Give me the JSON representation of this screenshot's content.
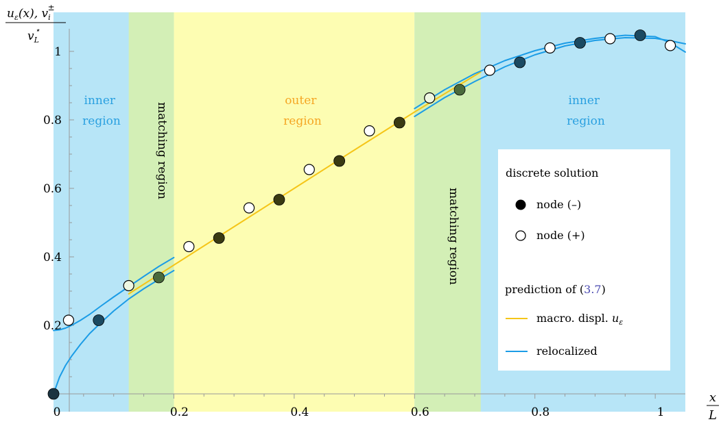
{
  "chart_data": {
    "type": "line",
    "ylabel": {
      "main": "u",
      "sub1": "ε",
      "mid": "(x), v",
      "sub2": "i",
      "sup2": "±",
      "den": "v",
      "den_sub": "L",
      "den_sup": "⋆"
    },
    "xlabel": {
      "num": "x",
      "den": "L"
    },
    "xlim": [
      0,
      1.05
    ],
    "ylim": [
      -0.01,
      1.1
    ],
    "xticks": [
      {
        "value": 0,
        "label": "0"
      },
      {
        "value": 0.2,
        "label": "0.2"
      },
      {
        "value": 0.4,
        "label": "0.4"
      },
      {
        "value": 0.6,
        "label": "0.6"
      },
      {
        "value": 0.8,
        "label": "0.8"
      },
      {
        "value": 1,
        "label": "1"
      }
    ],
    "yticks": [
      {
        "value": 0.2,
        "label": "0.2"
      },
      {
        "value": 0.4,
        "label": "0.4"
      },
      {
        "value": 0.6,
        "label": "0.6"
      },
      {
        "value": 0.8,
        "label": "0.8"
      },
      {
        "value": 1,
        "label": "1"
      }
    ],
    "regions": [
      {
        "kind": "inner",
        "x0": 0,
        "x1": 0.2,
        "color": "#b7e5f7"
      },
      {
        "kind": "outer",
        "x0": 0.2,
        "x1": 0.6,
        "color": "#fdfdb2"
      },
      {
        "kind": "inner",
        "x0": 0.6,
        "x1": 1.05,
        "color": "#b7e5f7"
      },
      {
        "kind": "matching",
        "x0": 0.125,
        "x1": 0.2,
        "color": "#d3efb6"
      },
      {
        "kind": "matching",
        "x0": 0.6,
        "x1": 0.71,
        "color": "#d3efb6"
      }
    ],
    "region_labels": {
      "inner_left": [
        "inner",
        "region"
      ],
      "outer": [
        "outer",
        "region"
      ],
      "inner_right": [
        "inner",
        "region"
      ],
      "matching_left": "matching region",
      "matching_right": "matching region"
    },
    "series": [
      {
        "name": "node (–)",
        "kind": "marker-filled",
        "points": [
          {
            "x": 0.0,
            "y": 0.0,
            "fill": "#1b3441"
          },
          {
            "x": 0.075,
            "y": 0.215,
            "fill": "#1b4a62"
          },
          {
            "x": 0.175,
            "y": 0.34,
            "fill": "#4a6a3c"
          },
          {
            "x": 0.275,
            "y": 0.455,
            "fill": "#3a3a12"
          },
          {
            "x": 0.375,
            "y": 0.567,
            "fill": "#3a3a12"
          },
          {
            "x": 0.475,
            "y": 0.68,
            "fill": "#3a3a12"
          },
          {
            "x": 0.575,
            "y": 0.792,
            "fill": "#3a3a12"
          },
          {
            "x": 0.675,
            "y": 0.888,
            "fill": "#4a6a3c"
          },
          {
            "x": 0.775,
            "y": 0.968,
            "fill": "#1b4a62"
          },
          {
            "x": 0.875,
            "y": 1.025,
            "fill": "#1b4a62"
          },
          {
            "x": 0.975,
            "y": 1.047,
            "fill": "#1b4a62"
          }
        ]
      },
      {
        "name": "node (+)",
        "kind": "marker-open",
        "points": [
          {
            "x": 0.025,
            "y": 0.215,
            "fill": "#ffffff"
          },
          {
            "x": 0.125,
            "y": 0.316,
            "fill": "#eef7e2"
          },
          {
            "x": 0.225,
            "y": 0.43,
            "fill": "#ffffff"
          },
          {
            "x": 0.325,
            "y": 0.543,
            "fill": "#ffffff"
          },
          {
            "x": 0.425,
            "y": 0.655,
            "fill": "#ffffff"
          },
          {
            "x": 0.525,
            "y": 0.768,
            "fill": "#ffffff"
          },
          {
            "x": 0.625,
            "y": 0.864,
            "fill": "#eef7e2"
          },
          {
            "x": 0.725,
            "y": 0.945,
            "fill": "#ffffff"
          },
          {
            "x": 0.825,
            "y": 1.01,
            "fill": "#ffffff"
          },
          {
            "x": 0.925,
            "y": 1.037,
            "fill": "#ffffff"
          },
          {
            "x": 1.025,
            "y": 1.017,
            "fill": "#ffffff"
          }
        ]
      },
      {
        "name": "macro. displ. u_ε",
        "kind": "line",
        "color": "#f5c518",
        "points": [
          [
            0.125,
            0.292
          ],
          [
            0.2,
            0.376
          ],
          [
            0.3,
            0.488
          ],
          [
            0.4,
            0.6
          ],
          [
            0.5,
            0.712
          ],
          [
            0.6,
            0.823
          ],
          [
            0.71,
            0.94
          ]
        ]
      },
      {
        "name": "relocalized",
        "kind": "line",
        "color": "#1b9ce6",
        "points": [
          [
            0.0,
            0.0
          ],
          [
            0.01,
            0.049
          ],
          [
            0.02,
            0.083
          ],
          [
            0.03,
            0.11
          ],
          [
            0.045,
            0.145
          ],
          [
            0.06,
            0.176
          ],
          [
            0.08,
            0.21
          ],
          [
            0.1,
            0.242
          ],
          [
            0.125,
            0.277
          ],
          [
            0.15,
            0.307
          ],
          [
            0.175,
            0.334
          ],
          [
            0.2,
            0.36
          ]
        ]
      },
      {
        "name": "relocalized",
        "kind": "line",
        "color": "#1b9ce6",
        "points": [
          [
            0.0,
            0.185
          ],
          [
            0.01,
            0.187
          ],
          [
            0.02,
            0.192
          ],
          [
            0.03,
            0.2
          ],
          [
            0.045,
            0.215
          ],
          [
            0.06,
            0.232
          ],
          [
            0.08,
            0.258
          ],
          [
            0.1,
            0.283
          ],
          [
            0.125,
            0.313
          ],
          [
            0.15,
            0.343
          ],
          [
            0.175,
            0.372
          ],
          [
            0.2,
            0.398
          ]
        ]
      },
      {
        "name": "relocalized",
        "kind": "line",
        "color": "#1b9ce6",
        "points": [
          [
            0.6,
            0.81
          ],
          [
            0.65,
            0.865
          ],
          [
            0.7,
            0.912
          ],
          [
            0.75,
            0.955
          ],
          [
            0.8,
            0.99
          ],
          [
            0.85,
            1.016
          ],
          [
            0.9,
            1.032
          ],
          [
            0.95,
            1.04
          ],
          [
            1.0,
            1.038
          ],
          [
            1.025,
            1.031
          ],
          [
            1.05,
            1.022
          ]
        ]
      },
      {
        "name": "relocalized",
        "kind": "line",
        "color": "#1b9ce6",
        "points": [
          [
            0.6,
            0.833
          ],
          [
            0.65,
            0.888
          ],
          [
            0.7,
            0.935
          ],
          [
            0.75,
            0.973
          ],
          [
            0.8,
            1.002
          ],
          [
            0.85,
            1.024
          ],
          [
            0.9,
            1.038
          ],
          [
            0.95,
            1.047
          ],
          [
            1.0,
            1.043
          ],
          [
            1.025,
            1.025
          ],
          [
            1.05,
            0.998
          ]
        ]
      }
    ],
    "legend": {
      "placement": "right",
      "heading1": "discrete solution",
      "filled_label": "node (–)",
      "open_label": "node (+)",
      "heading2_prefix": "prediction of (",
      "heading2_ref": "3.7",
      "heading2_suffix": ")",
      "macro_label": "macro. displ. ",
      "macro_sym": "u",
      "macro_sub": "ε",
      "reloc_label": "relocalized"
    },
    "colors": {
      "inner_text": "#2aa0e0",
      "outer_text": "#f5a623",
      "ref_link": "#4a4ab0",
      "macro_line": "#f5c518",
      "reloc_line": "#1b9ce6",
      "axis": "#999999"
    }
  }
}
